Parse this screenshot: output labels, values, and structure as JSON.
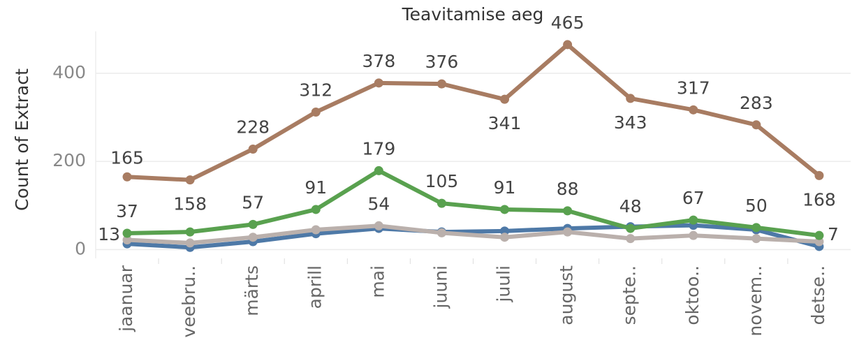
{
  "chart_data": {
    "type": "line",
    "title": "Teavitamise aeg",
    "y_label": "Count of Extract",
    "categories": [
      "jaanuar",
      "veebru..",
      "märts",
      "aprill",
      "mai",
      "juuni",
      "juuli",
      "august",
      "septe..",
      "oktoo..",
      "novem..",
      "detse.."
    ],
    "series": [
      {
        "color": "#a87c62",
        "values": [
          165,
          158,
          228,
          312,
          378,
          376,
          341,
          465,
          343,
          317,
          283,
          168
        ],
        "value_labels": [
          "165",
          "158",
          "228",
          "312",
          "378",
          "376",
          "341",
          "465",
          "343",
          "317",
          "283",
          "168"
        ]
      },
      {
        "color": "#59a14f",
        "values": [
          37,
          40,
          57,
          91,
          179,
          105,
          91,
          88,
          48,
          67,
          50,
          32
        ],
        "value_labels": [
          "37",
          null,
          "57",
          "91",
          "179",
          "105",
          "91",
          "88",
          "48",
          "67",
          "50",
          null
        ]
      },
      {
        "color": "#4e79a7",
        "values": [
          13,
          5,
          18,
          36,
          48,
          40,
          42,
          48,
          52,
          55,
          45,
          7
        ],
        "value_labels": [
          "13",
          null,
          null,
          null,
          null,
          null,
          null,
          null,
          null,
          null,
          null,
          "7"
        ]
      },
      {
        "color": "#bab0ac",
        "values": [
          22,
          15,
          28,
          45,
          54,
          38,
          28,
          40,
          25,
          32,
          25,
          18
        ],
        "value_labels": [
          null,
          null,
          null,
          null,
          "54",
          null,
          null,
          null,
          null,
          null,
          null,
          null
        ]
      }
    ],
    "ylim": [
      -20,
      495
    ],
    "yticks": [
      0,
      200,
      400
    ],
    "grid": true
  }
}
